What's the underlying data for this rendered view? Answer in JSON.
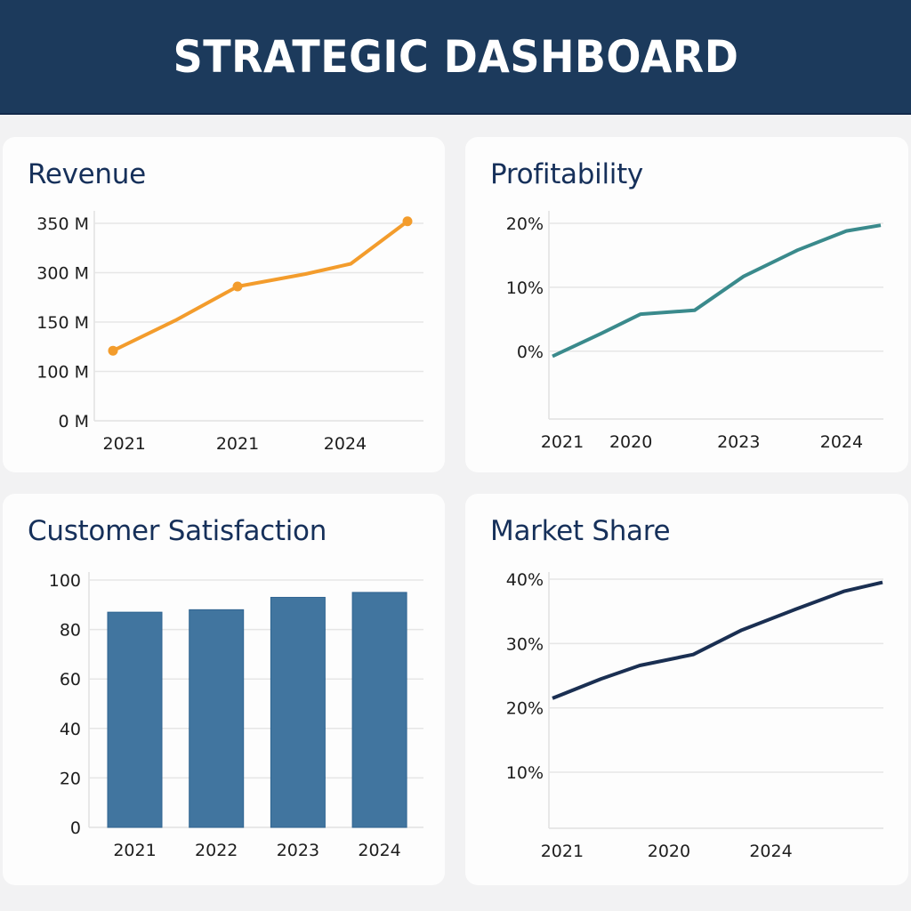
{
  "header": {
    "title": "STRATEGIC DASHBOARD"
  },
  "colors": {
    "header_bg": "#1c3a5c",
    "title_text": "#16305a",
    "revenue_line": "#f39c2c",
    "profitability_line": "#3a8a8c",
    "satisfaction_bar": "#41759f",
    "market_share_line": "#1a2f52",
    "grid": "#e6e6e6"
  },
  "chart_data": [
    {
      "id": "revenue",
      "type": "line",
      "title": "Revenue",
      "xlabel": "",
      "ylabel": "",
      "grid": true,
      "y_tick_labels": [
        "0 M",
        "100 M",
        "150 M",
        "300 M",
        "350 M"
      ],
      "y_tick_values": [
        0,
        100,
        150,
        300,
        350
      ],
      "x_tick_labels": [
        "2021",
        "2021",
        "2024"
      ],
      "x_tick_positions": [
        0.2,
        2.2,
        4.1
      ],
      "x": [
        0,
        1.1,
        2.2,
        3.4,
        4.2,
        5.2
      ],
      "values": [
        121,
        155,
        258,
        296,
        309,
        352
      ],
      "markers_at": [
        0,
        2,
        5
      ],
      "unit": "M",
      "note": "y tick labels are evenly spaced but non-linear; values read as positions on that scale"
    },
    {
      "id": "profitability",
      "type": "line",
      "title": "Profitability",
      "xlabel": "",
      "ylabel": "",
      "grid": true,
      "ylim": [
        -10.6,
        20
      ],
      "y_tick_labels": [
        "20%",
        "10%",
        "0%"
      ],
      "y_tick_values": [
        20,
        10,
        0
      ],
      "x_tick_labels": [
        "2021",
        "2020",
        "2023",
        "2024"
      ],
      "x_tick_positions": [
        0.2,
        1.6,
        3.8,
        5.9
      ],
      "x": [
        0,
        1.0,
        1.8,
        2.9,
        3.9,
        5.0,
        6.0,
        6.7
      ],
      "values": [
        -0.8,
        2.8,
        5.8,
        6.4,
        11.7,
        15.8,
        18.8,
        19.7
      ],
      "unit": "%"
    },
    {
      "id": "customer_satisfaction",
      "type": "bar",
      "title": "Customer Satisfaction",
      "xlabel": "",
      "ylabel": "",
      "grid": true,
      "ylim": [
        0,
        100
      ],
      "y_tick_labels": [
        "0",
        "20",
        "40",
        "60",
        "80",
        "100"
      ],
      "y_tick_values": [
        0,
        20,
        40,
        60,
        80,
        100
      ],
      "categories": [
        "2021",
        "2022",
        "2023",
        "2024"
      ],
      "values": [
        87,
        88,
        93,
        95
      ]
    },
    {
      "id": "market_share",
      "type": "line",
      "title": "Market Share",
      "xlabel": "",
      "ylabel": "",
      "grid": true,
      "ylim": [
        1.3,
        40
      ],
      "y_tick_labels": [
        "40%",
        "30%",
        "20%",
        "10%"
      ],
      "y_tick_values": [
        40,
        30,
        20,
        10
      ],
      "x_tick_labels": [
        "2021",
        "2020",
        "2024"
      ],
      "x_tick_positions": [
        0.2,
        2.4,
        4.5
      ],
      "x": [
        0,
        1.0,
        1.8,
        2.9,
        3.9,
        5.0,
        6.0,
        6.8
      ],
      "values": [
        21.5,
        24.5,
        26.6,
        28.3,
        32.1,
        35.3,
        38.1,
        39.5
      ],
      "unit": "%"
    }
  ]
}
